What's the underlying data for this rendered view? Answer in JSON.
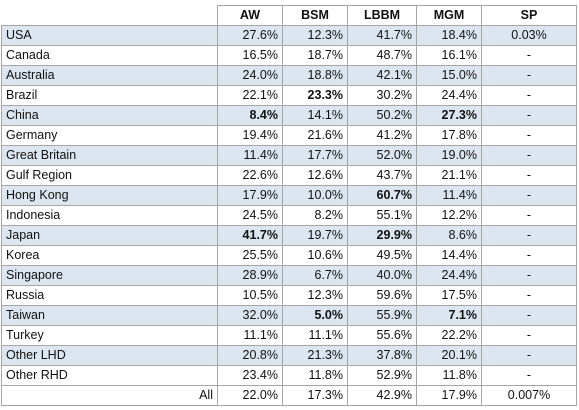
{
  "table": {
    "columns": [
      "AW",
      "BSM",
      "LBBM",
      "MGM",
      "SP"
    ],
    "rows": [
      {
        "name": "USA",
        "values": [
          "27.6%",
          "12.3%",
          "41.7%",
          "18.4%",
          "0.03%"
        ],
        "bold": []
      },
      {
        "name": "Canada",
        "values": [
          "16.5%",
          "18.7%",
          "48.7%",
          "16.1%",
          "-"
        ],
        "bold": []
      },
      {
        "name": "Australia",
        "values": [
          "24.0%",
          "18.8%",
          "42.1%",
          "15.0%",
          "-"
        ],
        "bold": []
      },
      {
        "name": "Brazil",
        "values": [
          "22.1%",
          "23.3%",
          "30.2%",
          "24.4%",
          "-"
        ],
        "bold": [
          1
        ]
      },
      {
        "name": "China",
        "values": [
          "8.4%",
          "14.1%",
          "50.2%",
          "27.3%",
          "-"
        ],
        "bold": [
          0,
          3
        ]
      },
      {
        "name": "Germany",
        "values": [
          "19.4%",
          "21.6%",
          "41.2%",
          "17.8%",
          "-"
        ],
        "bold": []
      },
      {
        "name": "Great Britain",
        "values": [
          "11.4%",
          "17.7%",
          "52.0%",
          "19.0%",
          "-"
        ],
        "bold": []
      },
      {
        "name": "Gulf Region",
        "values": [
          "22.6%",
          "12.6%",
          "43.7%",
          "21.1%",
          "-"
        ],
        "bold": []
      },
      {
        "name": "Hong Kong",
        "values": [
          "17.9%",
          "10.0%",
          "60.7%",
          "11.4%",
          "-"
        ],
        "bold": [
          2
        ]
      },
      {
        "name": "Indonesia",
        "values": [
          "24.5%",
          "8.2%",
          "55.1%",
          "12.2%",
          "-"
        ],
        "bold": []
      },
      {
        "name": "Japan",
        "values": [
          "41.7%",
          "19.7%",
          "29.9%",
          "8.6%",
          "-"
        ],
        "bold": [
          0,
          2
        ]
      },
      {
        "name": "Korea",
        "values": [
          "25.5%",
          "10.6%",
          "49.5%",
          "14.4%",
          "-"
        ],
        "bold": []
      },
      {
        "name": "Singapore",
        "values": [
          "28.9%",
          "6.7%",
          "40.0%",
          "24.4%",
          "-"
        ],
        "bold": []
      },
      {
        "name": "Russia",
        "values": [
          "10.5%",
          "12.3%",
          "59.6%",
          "17.5%",
          "-"
        ],
        "bold": []
      },
      {
        "name": "Taiwan",
        "values": [
          "32.0%",
          "5.0%",
          "55.9%",
          "7.1%",
          "-"
        ],
        "bold": [
          1,
          3
        ]
      },
      {
        "name": "Turkey",
        "values": [
          "11.1%",
          "11.1%",
          "55.6%",
          "22.2%",
          "-"
        ],
        "bold": []
      },
      {
        "name": "Other LHD",
        "values": [
          "20.8%",
          "21.3%",
          "37.8%",
          "20.1%",
          "-"
        ],
        "bold": []
      },
      {
        "name": "Other RHD",
        "values": [
          "23.4%",
          "11.8%",
          "52.9%",
          "11.8%",
          "-"
        ],
        "bold": []
      }
    ],
    "total": {
      "name": "All",
      "values": [
        "22.0%",
        "17.3%",
        "42.9%",
        "17.9%",
        "0.007%"
      ]
    }
  },
  "colors": {
    "row_shade": "#dce6f1",
    "border": "#a6a6a6"
  }
}
